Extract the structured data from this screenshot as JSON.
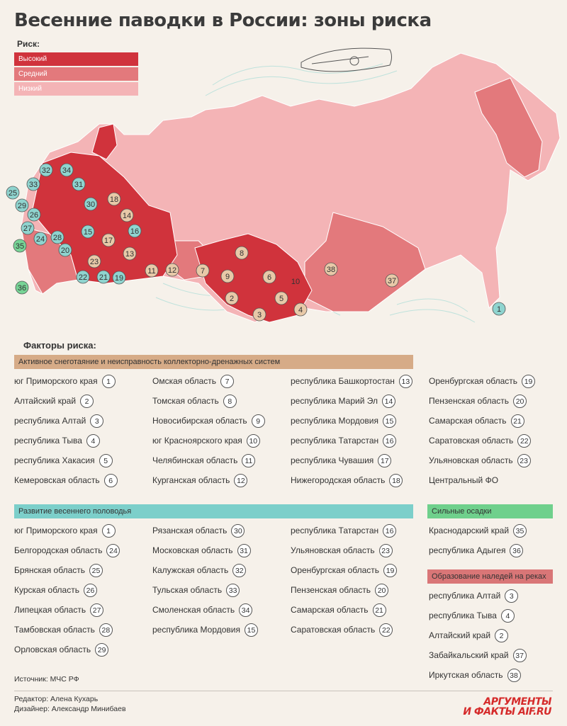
{
  "title": "Весенние паводки в России: зоны риска",
  "legend": {
    "label": "Риск:",
    "items": [
      {
        "label": "Высокий",
        "color": "#d0333c"
      },
      {
        "label": "Средний",
        "color": "#e3797c"
      },
      {
        "label": "Низкий",
        "color": "#f4b4b6"
      }
    ]
  },
  "map_markers": [
    {
      "n": "1"
    },
    {
      "n": "2"
    },
    {
      "n": "3"
    },
    {
      "n": "4"
    },
    {
      "n": "5"
    },
    {
      "n": "6"
    },
    {
      "n": "7"
    },
    {
      "n": "8"
    },
    {
      "n": "9"
    },
    {
      "n": "10"
    },
    {
      "n": "11"
    },
    {
      "n": "12"
    },
    {
      "n": "13"
    },
    {
      "n": "14"
    },
    {
      "n": "15"
    },
    {
      "n": "16"
    },
    {
      "n": "17"
    },
    {
      "n": "18"
    },
    {
      "n": "19"
    },
    {
      "n": "20"
    },
    {
      "n": "21"
    },
    {
      "n": "22"
    },
    {
      "n": "23"
    },
    {
      "n": "24"
    },
    {
      "n": "25"
    },
    {
      "n": "26"
    },
    {
      "n": "27"
    },
    {
      "n": "28"
    },
    {
      "n": "29"
    },
    {
      "n": "30"
    },
    {
      "n": "31"
    },
    {
      "n": "32"
    },
    {
      "n": "33"
    },
    {
      "n": "34"
    },
    {
      "n": "35"
    },
    {
      "n": "36"
    },
    {
      "n": "37"
    },
    {
      "n": "38"
    }
  ],
  "factors": {
    "title": "Факторы риска:",
    "snowmelt": {
      "label": "Активное снеготаяние и неисправность коллекторно-дренажных систем",
      "color": "#d6ab87",
      "columns": [
        [
          {
            "name": "юг Приморского края",
            "n": "1"
          },
          {
            "name": "Алтайский край",
            "n": "2"
          },
          {
            "name": "республика Алтай",
            "n": "3"
          },
          {
            "name": "республика Тыва",
            "n": "4"
          },
          {
            "name": "республика Хакасия",
            "n": "5"
          },
          {
            "name": "Кемеровская область",
            "n": "6"
          }
        ],
        [
          {
            "name": "Омская область",
            "n": "7"
          },
          {
            "name": "Томская область",
            "n": "8"
          },
          {
            "name": "Новосибирская область",
            "n": "9"
          },
          {
            "name": "юг Красноярского края",
            "n": "10"
          },
          {
            "name": "Челябинская область",
            "n": "11"
          },
          {
            "name": "Курганская область",
            "n": "12"
          }
        ],
        [
          {
            "name": "республика Башкортостан",
            "n": "13"
          },
          {
            "name": "республика Марий Эл",
            "n": "14"
          },
          {
            "name": "республика Мордовия",
            "n": "15"
          },
          {
            "name": "республика Татарстан",
            "n": "16"
          },
          {
            "name": "республика Чувашия",
            "n": "17"
          },
          {
            "name": "Нижегородская область",
            "n": "18"
          }
        ],
        [
          {
            "name": "Оренбургская область",
            "n": "19"
          },
          {
            "name": "Пензенская область",
            "n": "20"
          },
          {
            "name": "Самарская область",
            "n": "21"
          },
          {
            "name": "Саратовская область",
            "n": "22"
          },
          {
            "name": "Ульяновская область",
            "n": "23"
          },
          {
            "name": "Центральный ФО",
            "n": ""
          }
        ]
      ]
    },
    "flood": {
      "label": "Развитие весеннего половодья",
      "color": "#7ccfca",
      "columns": [
        [
          {
            "name": "юг Приморского края",
            "n": "1"
          },
          {
            "name": "Белгородская область",
            "n": "24"
          },
          {
            "name": "Брянская область",
            "n": "25"
          },
          {
            "name": "Курская область",
            "n": "26"
          },
          {
            "name": "Липецкая область",
            "n": "27"
          },
          {
            "name": "Тамбовская область",
            "n": "28"
          },
          {
            "name": "Орловская область",
            "n": "29"
          }
        ],
        [
          {
            "name": "Рязанская область",
            "n": "30"
          },
          {
            "name": "Московская область",
            "n": "31"
          },
          {
            "name": "Калужская область",
            "n": "32"
          },
          {
            "name": "Тульская область",
            "n": "33"
          },
          {
            "name": "Смоленская область",
            "n": "34"
          },
          {
            "name": "республика Мордовия",
            "n": "15"
          }
        ],
        [
          {
            "name": "республика Татарстан",
            "n": "16"
          },
          {
            "name": "Ульяновская область",
            "n": "23"
          },
          {
            "name": "Оренбургская область",
            "n": "19"
          },
          {
            "name": "Пензенская область",
            "n": "20"
          },
          {
            "name": "Самарская область",
            "n": "21"
          },
          {
            "name": "Саратовская область",
            "n": "22"
          }
        ]
      ]
    },
    "rain": {
      "label": "Сильные осадки",
      "color": "#6fd08c",
      "items": [
        {
          "name": "Краснодарский край",
          "n": "35"
        },
        {
          "name": "республика Адыгея",
          "n": "36"
        }
      ]
    },
    "ice": {
      "label": "Образование наледей на реках",
      "color": "#d97677",
      "items": [
        {
          "name": "республика Алтай",
          "n": "3"
        },
        {
          "name": "республика Тыва",
          "n": "4"
        },
        {
          "name": "Алтайский край",
          "n": "2"
        },
        {
          "name": "Забайкальский край",
          "n": "37"
        },
        {
          "name": "Иркутская область",
          "n": "38"
        }
      ]
    }
  },
  "source": "Источник: МЧС РФ",
  "editor": "Редактор: Алена Кухарь",
  "designer": "Дизайнер: Александр Минибаев",
  "logo": {
    "line1": "АРГУМЕНТЫ",
    "line2": "И ФАКТЫ AIF.RU",
    "color": "#d52a2a"
  }
}
